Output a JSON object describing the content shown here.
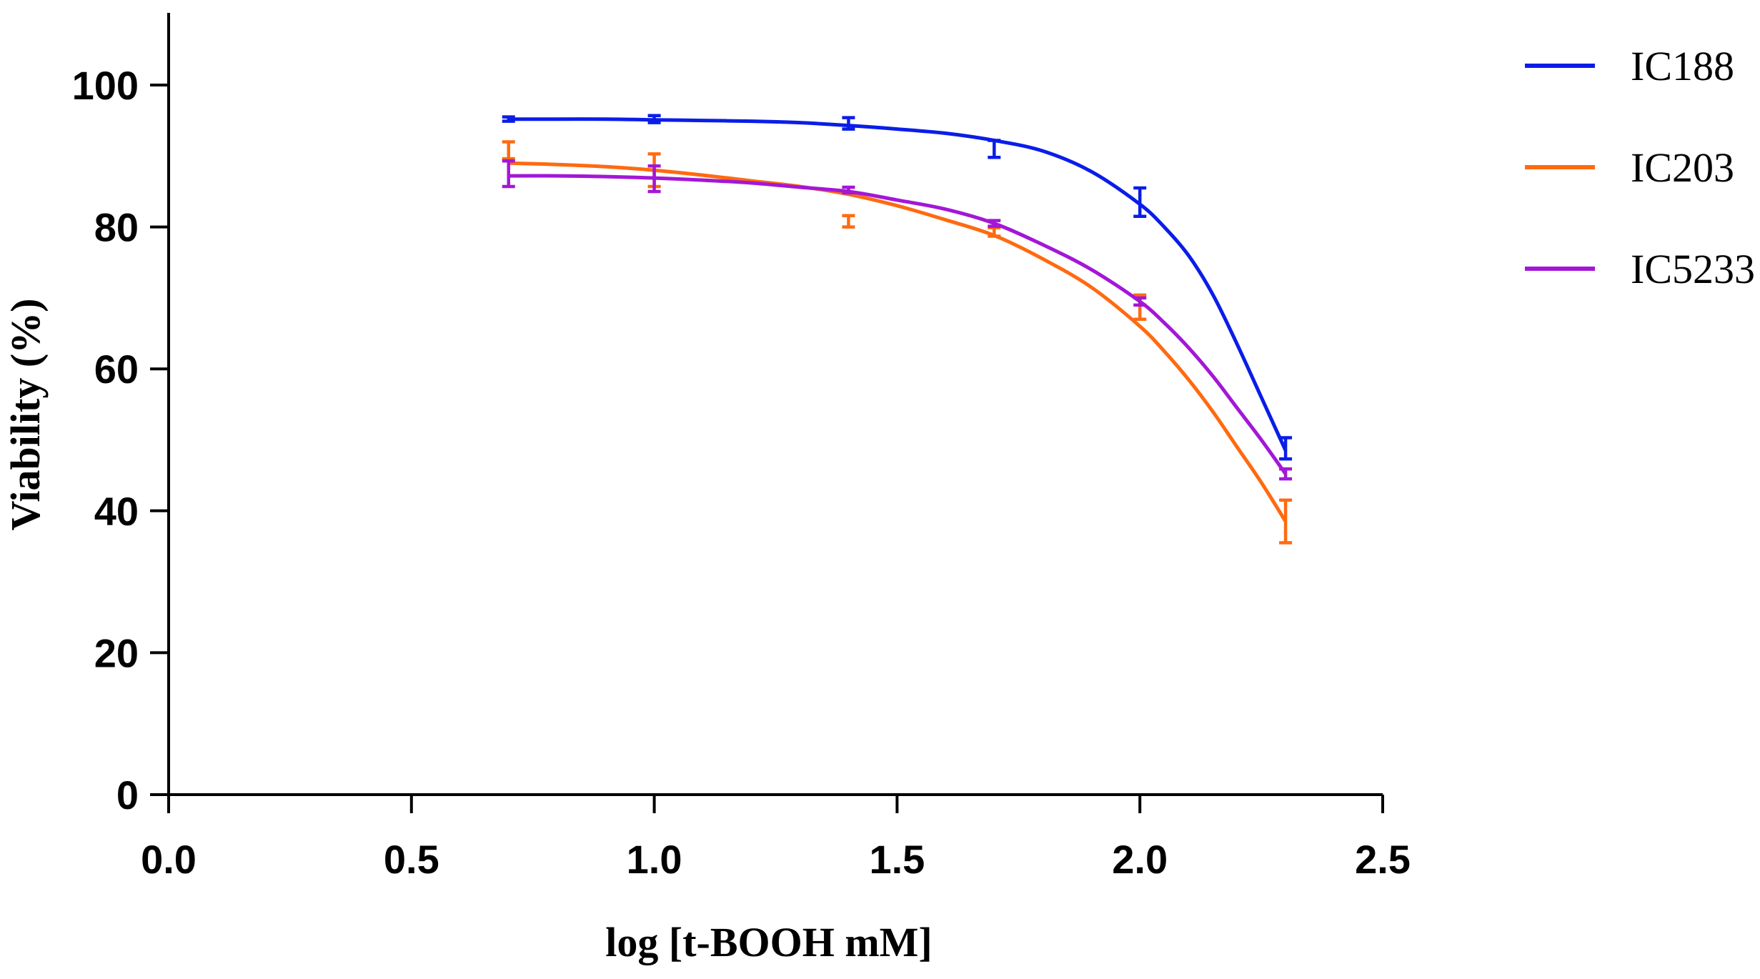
{
  "chart_data": {
    "type": "line",
    "title": "",
    "xlabel": "log [t-BOOH mM]",
    "ylabel": "Viability (%)",
    "xlim": [
      0,
      2.5
    ],
    "ylim": [
      0,
      110
    ],
    "xticks": [
      0.0,
      0.5,
      1.0,
      1.5,
      2.0,
      2.5
    ],
    "xtick_labels": [
      "0.0",
      "0.5",
      "1.0",
      "1.5",
      "2.0",
      "2.5"
    ],
    "yticks": [
      0,
      20,
      40,
      60,
      80,
      100
    ],
    "ytick_labels": [
      "0",
      "20",
      "40",
      "60",
      "80",
      "100"
    ],
    "grid": false,
    "legend_position": "top-right",
    "x": [
      0.7,
      1.0,
      1.4,
      1.7,
      2.0,
      2.3
    ],
    "series": [
      {
        "name": "IC188",
        "color": "#0a1de8",
        "values": [
          95.2,
          95.2,
          94.6,
          91.0,
          83.5,
          48.8
        ],
        "errors": [
          0.3,
          0.5,
          0.8,
          1.2,
          2.0,
          1.5
        ],
        "fit_x": [
          0.7,
          0.8,
          0.9,
          1.0,
          1.1,
          1.2,
          1.3,
          1.4,
          1.5,
          1.6,
          1.7,
          1.8,
          1.9,
          2.0,
          2.05,
          2.1,
          2.15,
          2.2,
          2.25,
          2.3
        ],
        "fit_y": [
          95.2,
          95.2,
          95.2,
          95.1,
          95.0,
          94.9,
          94.7,
          94.3,
          93.8,
          93.2,
          92.2,
          90.7,
          87.8,
          83.2,
          80.0,
          76.0,
          70.5,
          63.5,
          56.0,
          48.5
        ]
      },
      {
        "name": "IC203",
        "color": "#ff6a10",
        "values": [
          90.8,
          88.0,
          80.8,
          79.3,
          68.7,
          38.5
        ],
        "errors": [
          1.2,
          2.3,
          0.8,
          0.6,
          1.7,
          3.0
        ],
        "fit_x": [
          0.7,
          0.8,
          0.9,
          1.0,
          1.1,
          1.2,
          1.3,
          1.4,
          1.5,
          1.6,
          1.7,
          1.8,
          1.9,
          2.0,
          2.05,
          2.1,
          2.15,
          2.2,
          2.25,
          2.3
        ],
        "fit_y": [
          89.0,
          88.8,
          88.5,
          88.0,
          87.3,
          86.5,
          85.7,
          84.6,
          83.0,
          81.0,
          78.8,
          75.5,
          71.5,
          66.0,
          62.5,
          58.5,
          54.0,
          49.0,
          44.0,
          38.5
        ]
      },
      {
        "name": "IC5233",
        "color": "#a317d6",
        "values": [
          87.5,
          86.8,
          85.2,
          80.5,
          69.5,
          45.2
        ],
        "errors": [
          1.8,
          1.8,
          0.4,
          0.4,
          0.5,
          0.7
        ],
        "fit_x": [
          0.7,
          0.8,
          0.9,
          1.0,
          1.1,
          1.2,
          1.3,
          1.4,
          1.5,
          1.6,
          1.7,
          1.8,
          1.9,
          2.0,
          2.05,
          2.1,
          2.15,
          2.2,
          2.25,
          2.3
        ],
        "fit_y": [
          87.2,
          87.2,
          87.1,
          86.9,
          86.6,
          86.2,
          85.6,
          85.0,
          83.8,
          82.5,
          80.5,
          77.5,
          74.0,
          69.5,
          66.5,
          63.0,
          59.0,
          54.5,
          50.0,
          45.2
        ]
      }
    ]
  }
}
